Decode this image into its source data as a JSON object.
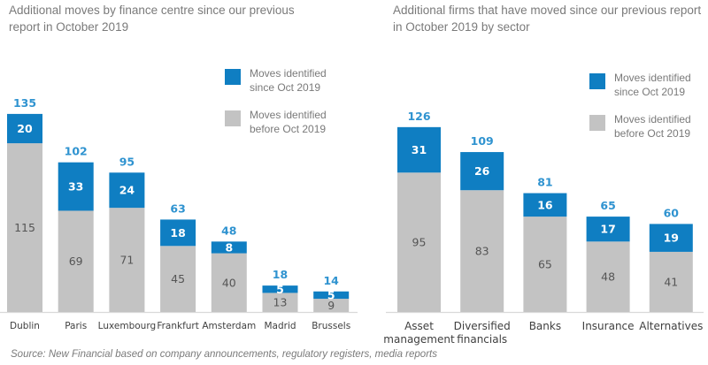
{
  "colors": {
    "since": "#0f7ec2",
    "before": "#c3c3c3",
    "total_label": "#2f93d0",
    "before_label": "#555555",
    "since_label": "#ffffff",
    "axis": "#d9d9d9",
    "text": "#7a7a7a"
  },
  "chart_data": [
    {
      "type": "bar",
      "stacked": true,
      "title": "Additional moves by finance centre since our previous report in October 2019",
      "xlabel": "",
      "ylabel": "",
      "ylim": [
        0,
        135
      ],
      "grid": false,
      "legend_position": "top-right",
      "categories": [
        "Dublin",
        "Paris",
        "Luxembourg",
        "Frankfurt",
        "Amsterdam",
        "Madrid",
        "Brussels"
      ],
      "series": [
        {
          "name": "Moves identified before Oct 2019",
          "values": [
            115,
            69,
            71,
            45,
            40,
            13,
            9
          ]
        },
        {
          "name": "Moves identified since Oct 2019",
          "values": [
            20,
            33,
            24,
            18,
            8,
            5,
            5
          ]
        }
      ],
      "totals": [
        135,
        102,
        95,
        63,
        48,
        18,
        14
      ],
      "legend": [
        "Moves identified since Oct 2019",
        "Moves identified before Oct 2019"
      ]
    },
    {
      "type": "bar",
      "stacked": true,
      "title": "Additional firms that have moved since our previous report in October 2019 by sector",
      "xlabel": "",
      "ylabel": "",
      "ylim": [
        0,
        126
      ],
      "grid": false,
      "legend_position": "top-right",
      "categories": [
        "Asset management",
        "Diversified financials",
        "Banks",
        "Insurance",
        "Alternatives"
      ],
      "category_lines": [
        [
          "Asset",
          "management"
        ],
        [
          "Diversified",
          "financials"
        ],
        [
          "Banks"
        ],
        [
          "Insurance"
        ],
        [
          "Alternatives"
        ]
      ],
      "series": [
        {
          "name": "Moves identified before Oct 2019",
          "values": [
            95,
            83,
            65,
            48,
            41
          ]
        },
        {
          "name": "Moves identified since Oct 2019",
          "values": [
            31,
            26,
            16,
            17,
            19
          ]
        }
      ],
      "totals": [
        126,
        109,
        81,
        65,
        60
      ],
      "legend": [
        "Moves identified since Oct 2019",
        "Moves identified before Oct 2019"
      ]
    }
  ],
  "legend_left": {
    "since": "Moves identified since Oct 2019",
    "since_lines": [
      "Moves identified",
      "since Oct 2019"
    ],
    "before_lines": [
      "Moves identified",
      "before Oct 2019"
    ]
  },
  "legend_right": {
    "since_lines": [
      "Moves identified",
      "since Oct 2019"
    ],
    "before_lines": [
      "Moves identified",
      "before Oct 2019"
    ]
  },
  "source": "Source: New Financial based on company announcements, regulatory registers, media reports"
}
